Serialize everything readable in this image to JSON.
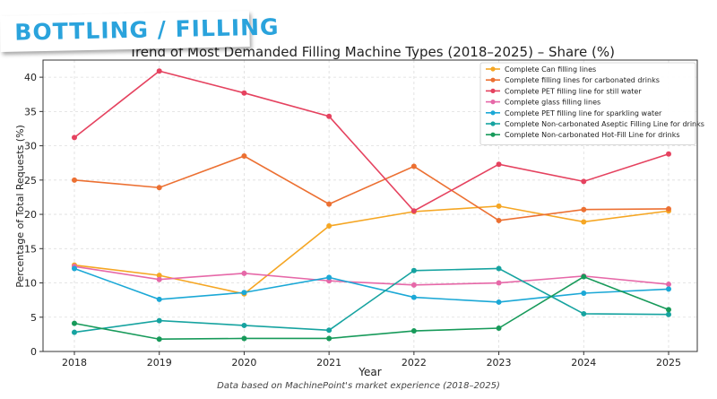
{
  "banner": {
    "text": "BOTTLING / FILLING"
  },
  "footnote": "Data based on MachinePoint's market experience (2018–2025)",
  "colors": {
    "can": "#f5a623",
    "carbonated": "#ec7032",
    "pet_still": "#e5425f",
    "glass": "#e668a8",
    "pet_sparkling": "#1ba8d6",
    "aseptic": "#16a3a0",
    "hotfill": "#179a5a"
  },
  "chart_data": {
    "type": "line",
    "title": "Trend of Most Demanded Filling Machine Types (2018–2025) – Share (%)",
    "xlabel": "Year",
    "ylabel": "Percentage of Total Requests (%)",
    "x": [
      2018,
      2019,
      2020,
      2021,
      2022,
      2023,
      2024,
      2025
    ],
    "ylim": [
      0,
      42.5
    ],
    "yticks": [
      0,
      5,
      10,
      15,
      20,
      25,
      30,
      35,
      40
    ],
    "grid": true,
    "legend": "top-right",
    "series": [
      {
        "name": "Complete Can filling lines",
        "color": "#f5a623",
        "values": [
          12.6,
          11.1,
          8.4,
          18.3,
          20.4,
          21.2,
          18.9,
          20.5
        ]
      },
      {
        "name": "Complete filling lines for carbonated drinks",
        "color": "#ec7032",
        "values": [
          25.0,
          23.9,
          28.5,
          21.5,
          27.0,
          19.1,
          20.7,
          20.8
        ]
      },
      {
        "name": "Complete PET filling line for still water",
        "color": "#e5425f",
        "values": [
          31.2,
          40.9,
          37.7,
          34.3,
          20.5,
          27.3,
          24.8,
          28.8
        ]
      },
      {
        "name": "Complete glass filling lines",
        "color": "#e668a8",
        "values": [
          12.4,
          10.5,
          11.4,
          10.3,
          9.7,
          10.0,
          11.0,
          9.8
        ]
      },
      {
        "name": "Complete PET filling line for sparkling water",
        "color": "#1ba8d6",
        "values": [
          12.1,
          7.6,
          8.6,
          10.8,
          7.9,
          7.2,
          8.5,
          9.1
        ]
      },
      {
        "name": "Complete Non-carbonated Aseptic Filling Line for drinks",
        "color": "#16a3a0",
        "values": [
          2.8,
          4.5,
          3.8,
          3.1,
          11.8,
          12.1,
          5.5,
          5.4
        ]
      },
      {
        "name": "Complete Non-carbonated Hot-Fill Line for drinks",
        "color": "#179a5a",
        "values": [
          4.1,
          1.8,
          1.9,
          1.9,
          3.0,
          3.4,
          10.9,
          6.1
        ]
      }
    ]
  }
}
